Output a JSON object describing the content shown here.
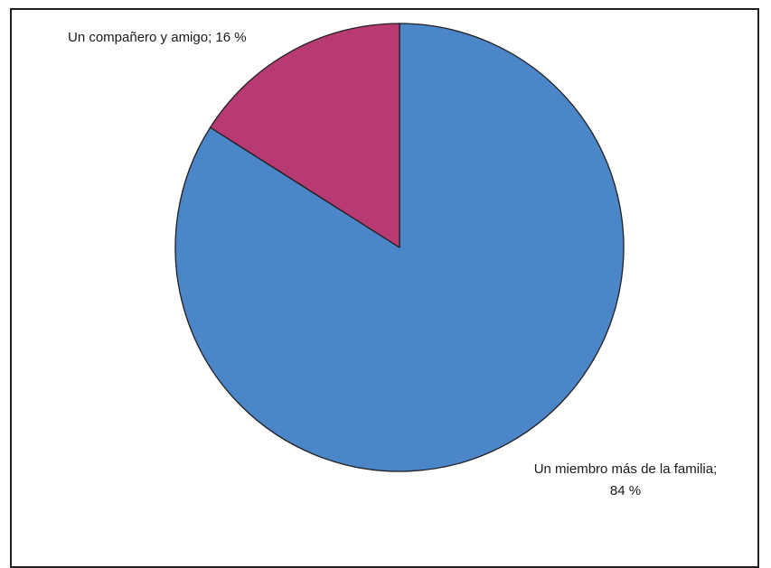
{
  "chart_data": {
    "type": "pie",
    "title": "",
    "slices": [
      {
        "label": "Un miembro más de la familia;",
        "value_label": "84 %",
        "value": 84,
        "color": "#4a86c8"
      },
      {
        "label": "Un compañero y amigo;",
        "value_label": "16 %",
        "value": 16,
        "color": "#b73a73"
      }
    ],
    "start": "12 o'clock",
    "direction": "clockwise",
    "legend": "none"
  }
}
